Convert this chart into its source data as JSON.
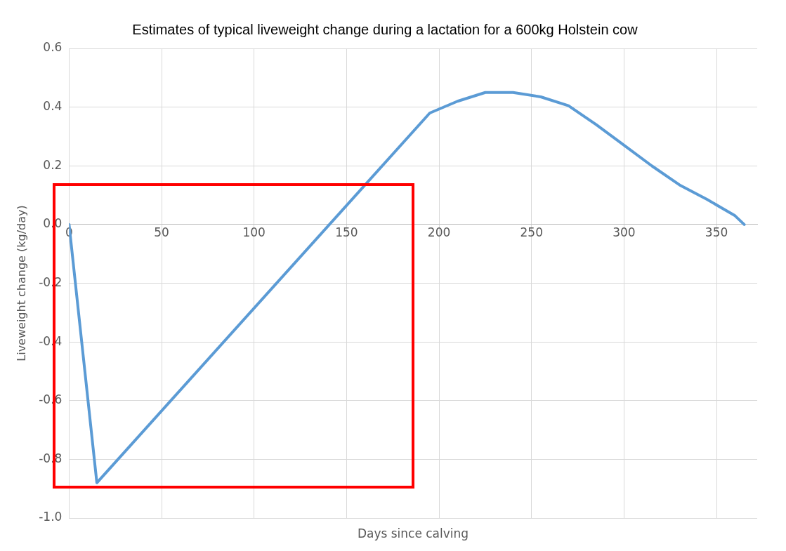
{
  "chart_data": {
    "type": "line",
    "title": "Estimates of typical liveweight change during a lactation for a 600kg Holstein cow",
    "xlabel": "Days since calving",
    "ylabel": "Liveweight change (kg/day)",
    "x": [
      0,
      15,
      195,
      210,
      225,
      240,
      255,
      270,
      285,
      300,
      315,
      330,
      345,
      360,
      365
    ],
    "series": [
      {
        "color": "#5b9bd5",
        "values": [
          0,
          -0.88,
          0.38,
          0.42,
          0.45,
          0.45,
          0.435,
          0.405,
          0.34,
          0.27,
          0.2,
          0.135,
          0.085,
          0.03,
          0
        ]
      }
    ],
    "xlim": [
      0,
      372
    ],
    "xticks": [
      0,
      50,
      100,
      150,
      200,
      250,
      300,
      350
    ],
    "ylim": [
      -1,
      0.6
    ],
    "yticks": [
      {
        "value": -1,
        "label": "-1.0"
      },
      {
        "value": -0.8,
        "label": "-0.8"
      },
      {
        "value": -0.6,
        "label": "-0.6"
      },
      {
        "value": -0.4,
        "label": "-0.4"
      },
      {
        "value": -0.2,
        "label": "-0.2"
      },
      {
        "value": 0,
        "label": "0.0"
      },
      {
        "value": 0.2,
        "label": "0.2"
      },
      {
        "value": 0.4,
        "label": "0.4"
      },
      {
        "value": 0.6,
        "label": "0.6"
      }
    ],
    "grid": true,
    "legend": false,
    "marker": "none",
    "line_style": "solid"
  }
}
